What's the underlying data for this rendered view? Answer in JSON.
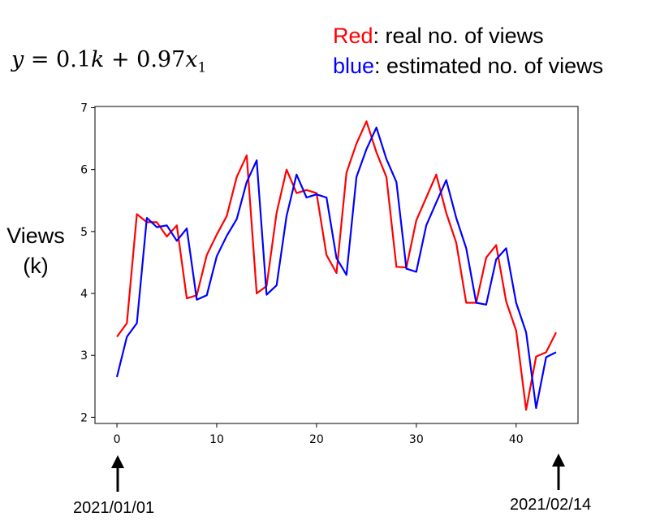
{
  "annotations": {
    "equation": "y = 0.1k + 0.97x1",
    "red_word": "Red",
    "red_rest": ": real no. of views",
    "blue_word": "blue",
    "blue_rest": ":  estimated no. of views",
    "ylabel_line1": "Views",
    "ylabel_line2": "(k)",
    "start_date": "2021/01/01",
    "end_date": "2021/02/14"
  },
  "chart_data": {
    "type": "line",
    "x": [
      0,
      1,
      2,
      3,
      4,
      5,
      6,
      7,
      8,
      9,
      10,
      11,
      12,
      13,
      14,
      15,
      16,
      17,
      18,
      19,
      20,
      21,
      22,
      23,
      24,
      25,
      26,
      27,
      28,
      29,
      30,
      31,
      32,
      33,
      34,
      35,
      36,
      37,
      38,
      39,
      40,
      41,
      42,
      43,
      44
    ],
    "series": [
      {
        "color": "#ff0000",
        "values": [
          3.3,
          3.52,
          5.28,
          5.15,
          5.15,
          4.92,
          5.1,
          3.92,
          3.97,
          4.62,
          4.95,
          5.25,
          5.88,
          6.23,
          4.0,
          4.12,
          5.3,
          6.0,
          5.62,
          5.67,
          5.62,
          4.62,
          4.33,
          5.95,
          6.42,
          6.78,
          6.28,
          5.88,
          4.43,
          4.42,
          5.18,
          5.55,
          5.92,
          5.3,
          4.82,
          3.85,
          3.85,
          4.58,
          4.78,
          3.87,
          3.4,
          2.12,
          2.98,
          3.05,
          3.37
        ]
      },
      {
        "color": "#0000ff",
        "values": [
          2.65,
          3.3,
          3.52,
          5.22,
          5.07,
          5.1,
          4.85,
          5.05,
          3.9,
          3.97,
          4.6,
          4.93,
          5.2,
          5.8,
          6.15,
          3.98,
          4.13,
          5.25,
          5.92,
          5.55,
          5.6,
          5.55,
          4.57,
          4.3,
          5.88,
          6.33,
          6.68,
          6.17,
          5.8,
          4.4,
          4.35,
          5.1,
          5.47,
          5.83,
          5.22,
          4.73,
          3.85,
          3.82,
          4.55,
          4.73,
          3.85,
          3.37,
          2.15,
          2.97,
          3.05
        ]
      }
    ],
    "xticks": [
      0,
      10,
      20,
      30,
      40
    ],
    "yticks": [
      2,
      3,
      4,
      5,
      6,
      7
    ],
    "xlim": [
      -2.2,
      46.2
    ],
    "ylim": [
      1.9,
      7.02
    ],
    "xlabel": "",
    "ylabel": "Views (k)",
    "grid": false
  }
}
